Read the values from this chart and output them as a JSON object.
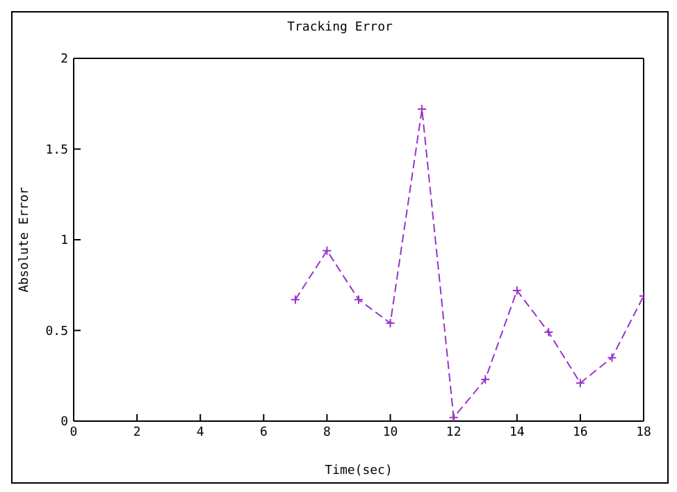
{
  "chart_data": {
    "type": "line",
    "title": "Tracking Error",
    "xlabel": "Time(sec)",
    "ylabel": "Absolute Error",
    "x": [
      7,
      8,
      9,
      10,
      11,
      12,
      13,
      14,
      15,
      16,
      17,
      18
    ],
    "series": [
      {
        "color": "#9933cc",
        "values": [
          0.67,
          0.94,
          0.67,
          0.54,
          1.72,
          0.02,
          0.23,
          0.72,
          0.49,
          0.21,
          0.35,
          0.69
        ]
      }
    ],
    "xlim": [
      0,
      18
    ],
    "xticks": [
      0,
      2,
      4,
      6,
      8,
      10,
      12,
      14,
      16,
      18
    ],
    "ylim": [
      0,
      2
    ],
    "yticks": [
      0,
      0.5,
      1,
      1.5,
      2
    ],
    "grid": false,
    "legend": false,
    "marker": "cross",
    "line_style": "dashed"
  }
}
